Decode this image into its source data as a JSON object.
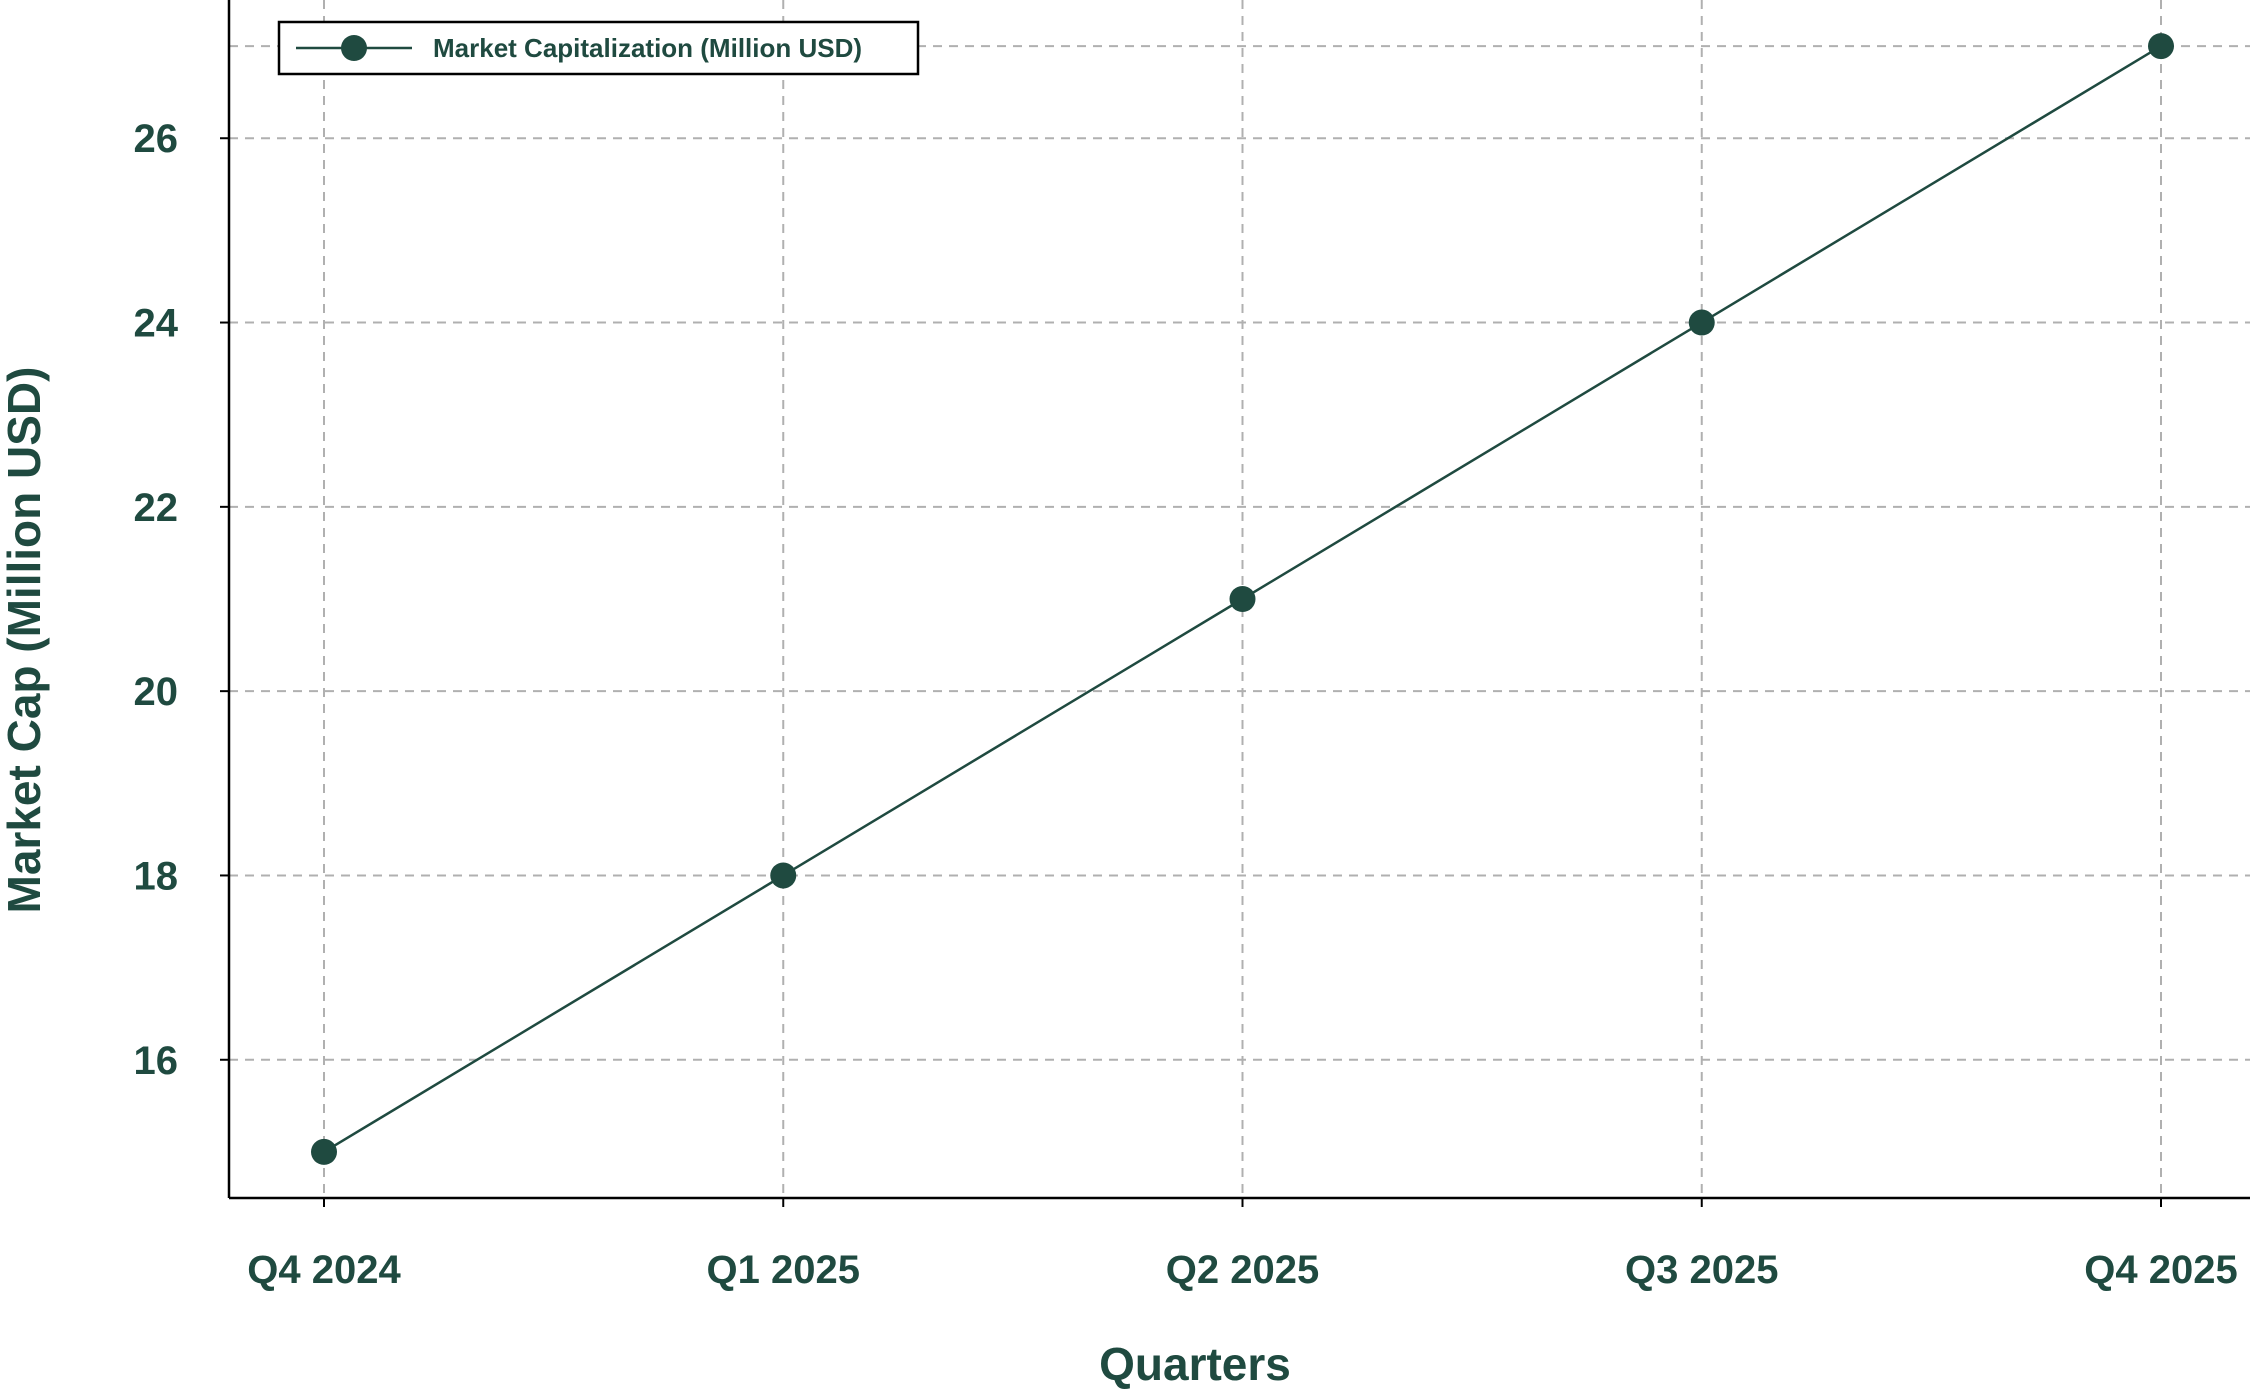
{
  "chart_data": {
    "type": "line",
    "title": "",
    "xlabel": "Quarters",
    "ylabel": "Market Cap (Million USD)",
    "categories": [
      "Q4 2024",
      "Q1 2025",
      "Q2 2025",
      "Q3 2025",
      "Q4 2025"
    ],
    "series": [
      {
        "name": "Market Capitalization (Million USD)",
        "values": [
          15,
          18,
          21,
          24,
          27
        ],
        "color": "#1f4a40",
        "marker": "circle"
      }
    ],
    "yticks": [
      16,
      18,
      20,
      22,
      24,
      26
    ],
    "ylim": [
      14.5,
      27.5
    ],
    "grid": true,
    "legend_position": "top-left"
  },
  "colors": {
    "text": "#1f4a40",
    "line": "#1f4a40",
    "grid": "#b0b0b0",
    "axis": "#000000"
  }
}
